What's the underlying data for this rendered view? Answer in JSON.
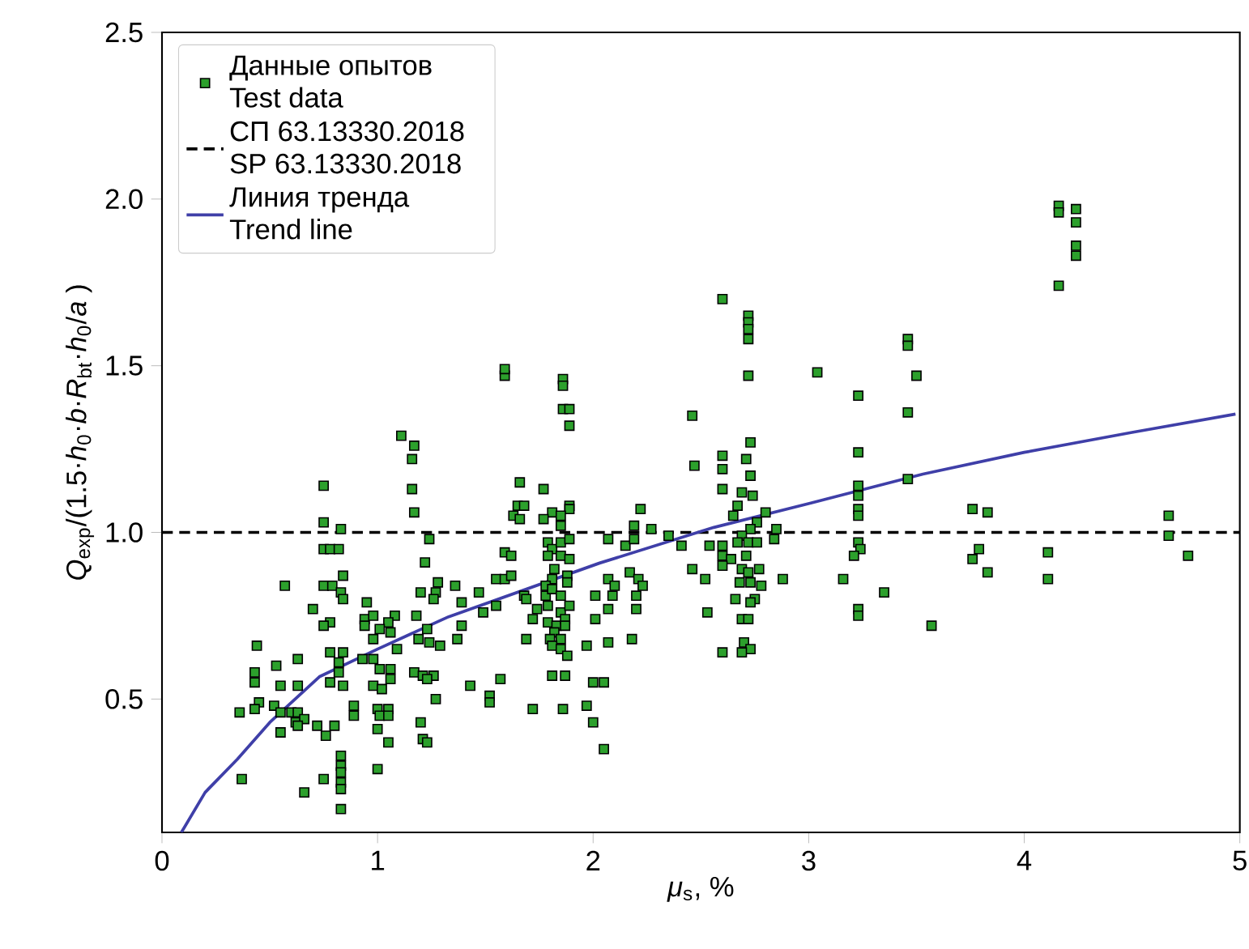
{
  "chart_data": {
    "type": "scatter",
    "xlabel": "*μ*$_{s}$,  %",
    "ylabel": "*Q*$_{exp}$/(1.5·*h*$_{0}$·*b*·*R*$_{bt}$·*h*$_{0}$/*a* )",
    "xlim": [
      0,
      5
    ],
    "ylim": [
      0.1,
      2.5
    ],
    "xticks": [
      0,
      1,
      2,
      3,
      4,
      5
    ],
    "yticks": [
      {
        "value": 0.5,
        "label": "0.5"
      },
      {
        "value": 1.0,
        "label": "1.0"
      },
      {
        "value": 1.5,
        "label": "1.5"
      },
      {
        "value": 2.0,
        "label": "2.0"
      },
      {
        "value": 2.5,
        "label": "2.5"
      }
    ],
    "legend": "top left",
    "series": [
      {
        "name": "Данные опытов Test data",
        "marker": "square",
        "color": "#2ca02c",
        "x": [
          1.11,
          1.17,
          1.16,
          0.75,
          1.16,
          1.17,
          0.75,
          0.83,
          1.24,
          0.75,
          0.78,
          0.82,
          1.22,
          0.57,
          0.75,
          0.79,
          0.84,
          0.83,
          0.84,
          1.28,
          1.2,
          1.27,
          1.26,
          0.95,
          0.7,
          0.78,
          0.75,
          0.94,
          0.98,
          1.08,
          1.18,
          1.05,
          0.94,
          1.01,
          0.98,
          1.06,
          1.09,
          1.23,
          1.19,
          1.29,
          1.24,
          0.44,
          0.78,
          0.84,
          0.82,
          0.93,
          0.98,
          1.01,
          1.06,
          0.63,
          0.53,
          0.82,
          0.63,
          0.55,
          0.43,
          0.43,
          0.78,
          0.84,
          0.98,
          1.02,
          1.06,
          1.17,
          1.21,
          1.26,
          1.23,
          0.45,
          0.43,
          0.36,
          0.52,
          0.55,
          0.6,
          0.63,
          0.62,
          0.66,
          0.89,
          0.89,
          1.0,
          1.05,
          1.01,
          1.05,
          1.27,
          0.55,
          0.63,
          0.72,
          0.76,
          0.8,
          1.0,
          1.05,
          1.2,
          1.21,
          1.23,
          0.83,
          0.83,
          0.83,
          0.83,
          0.83,
          0.75,
          0.37,
          1.0,
          0.66,
          0.83,
          1.59,
          1.59,
          1.86,
          1.86,
          1.86,
          1.89,
          1.89,
          2.46,
          2.47,
          1.66,
          1.77,
          1.65,
          1.68,
          1.63,
          1.66,
          1.81,
          1.89,
          1.89,
          1.77,
          1.85,
          1.85,
          2.22,
          2.19,
          2.27,
          2.07,
          2.15,
          2.19,
          2.35,
          2.41,
          2.46,
          2.52,
          2.54,
          1.59,
          1.62,
          1.79,
          1.81,
          1.85,
          1.89,
          1.79,
          1.85,
          1.89,
          1.82,
          1.88,
          1.81,
          1.55,
          1.59,
          1.62,
          1.68,
          1.69,
          1.36,
          1.47,
          1.39,
          1.55,
          1.49,
          1.78,
          1.78,
          1.81,
          1.85,
          1.88,
          1.74,
          1.72,
          1.79,
          1.85,
          1.89,
          1.79,
          1.83,
          1.87,
          1.82,
          1.87,
          1.8,
          1.85,
          1.81,
          1.85,
          1.88,
          2.01,
          2.07,
          2.1,
          2.09,
          2.07,
          2.01,
          2.17,
          2.21,
          2.23,
          2.2,
          2.2,
          1.39,
          1.37,
          1.69,
          1.97,
          2.07,
          2.18,
          1.81,
          1.87,
          1.57,
          1.43,
          1.52,
          1.52,
          2.0,
          2.05,
          1.72,
          1.86,
          1.97,
          2.0,
          2.05,
          2.53,
          2.6,
          2.72,
          2.72,
          2.72,
          2.72,
          2.72,
          3.04,
          3.46,
          3.46,
          3.5,
          3.23,
          3.46,
          2.73,
          2.6,
          2.6,
          2.71,
          2.73,
          3.23,
          2.6,
          2.69,
          2.74,
          3.23,
          3.23,
          3.23,
          3.23,
          3.46,
          2.67,
          2.65,
          2.8,
          2.76,
          2.73,
          2.69,
          2.85,
          2.84,
          3.23,
          3.24,
          3.21,
          2.6,
          2.67,
          2.72,
          2.76,
          2.6,
          2.64,
          2.71,
          2.6,
          2.69,
          2.72,
          2.77,
          2.68,
          2.73,
          2.78,
          2.88,
          3.16,
          3.35,
          2.66,
          2.75,
          2.73,
          3.23,
          3.23,
          2.69,
          2.72,
          2.7,
          2.73,
          2.69,
          2.6,
          3.57,
          4.16,
          4.16,
          4.24,
          4.24,
          4.24,
          4.24,
          4.16,
          3.76,
          3.83,
          3.76,
          3.79,
          3.83,
          4.11,
          4.11,
          4.67,
          4.67,
          4.76
        ],
        "values": [
          1.29,
          1.26,
          1.22,
          1.14,
          1.13,
          1.06,
          1.03,
          1.01,
          0.98,
          0.95,
          0.95,
          0.95,
          0.91,
          0.84,
          0.84,
          0.84,
          0.87,
          0.82,
          0.8,
          0.85,
          0.82,
          0.82,
          0.8,
          0.79,
          0.77,
          0.73,
          0.72,
          0.74,
          0.75,
          0.75,
          0.75,
          0.73,
          0.72,
          0.71,
          0.68,
          0.7,
          0.65,
          0.71,
          0.68,
          0.66,
          0.67,
          0.66,
          0.64,
          0.64,
          0.61,
          0.62,
          0.62,
          0.59,
          0.59,
          0.62,
          0.6,
          0.58,
          0.54,
          0.54,
          0.58,
          0.55,
          0.55,
          0.54,
          0.54,
          0.53,
          0.56,
          0.58,
          0.57,
          0.57,
          0.56,
          0.49,
          0.47,
          0.46,
          0.48,
          0.46,
          0.46,
          0.46,
          0.43,
          0.44,
          0.48,
          0.45,
          0.47,
          0.47,
          0.45,
          0.45,
          0.5,
          0.4,
          0.42,
          0.42,
          0.39,
          0.42,
          0.41,
          0.37,
          0.43,
          0.38,
          0.37,
          0.33,
          0.3,
          0.28,
          0.25,
          0.23,
          0.26,
          0.26,
          0.29,
          0.22,
          0.17,
          1.47,
          1.49,
          1.46,
          1.44,
          1.37,
          1.37,
          1.32,
          1.35,
          1.2,
          1.15,
          1.13,
          1.08,
          1.08,
          1.05,
          1.04,
          1.06,
          1.08,
          1.07,
          1.04,
          1.05,
          1.02,
          1.07,
          1.02,
          1.01,
          0.98,
          0.96,
          0.98,
          0.99,
          0.96,
          0.89,
          0.86,
          0.96,
          0.94,
          0.93,
          0.97,
          0.95,
          0.97,
          0.98,
          0.93,
          0.93,
          0.92,
          0.89,
          0.87,
          0.86,
          0.86,
          0.86,
          0.87,
          0.81,
          0.8,
          0.84,
          0.82,
          0.79,
          0.78,
          0.76,
          0.84,
          0.81,
          0.83,
          0.81,
          0.85,
          0.77,
          0.74,
          0.78,
          0.76,
          0.78,
          0.73,
          0.72,
          0.74,
          0.7,
          0.72,
          0.68,
          0.68,
          0.66,
          0.65,
          0.63,
          0.81,
          0.86,
          0.84,
          0.81,
          0.77,
          0.74,
          0.88,
          0.86,
          0.84,
          0.81,
          0.77,
          0.72,
          0.68,
          0.68,
          0.66,
          0.67,
          0.68,
          0.57,
          0.57,
          0.56,
          0.54,
          0.51,
          0.49,
          0.55,
          0.55,
          0.47,
          0.47,
          0.48,
          0.43,
          0.35,
          0.76,
          1.7,
          1.65,
          1.63,
          1.61,
          1.58,
          1.47,
          1.48,
          1.58,
          1.56,
          1.47,
          1.41,
          1.36,
          1.27,
          1.23,
          1.19,
          1.22,
          1.17,
          1.24,
          1.13,
          1.12,
          1.11,
          1.14,
          1.11,
          1.07,
          1.05,
          1.16,
          1.08,
          1.05,
          1.06,
          1.03,
          1.01,
          0.99,
          1.01,
          0.98,
          0.97,
          0.95,
          0.93,
          0.96,
          0.97,
          0.97,
          0.97,
          0.93,
          0.92,
          0.93,
          0.9,
          0.89,
          0.88,
          0.89,
          0.85,
          0.85,
          0.84,
          0.86,
          0.86,
          0.82,
          0.8,
          0.8,
          0.79,
          0.77,
          0.75,
          0.74,
          0.74,
          0.67,
          0.65,
          0.64,
          0.64,
          0.72,
          1.98,
          1.96,
          1.97,
          1.93,
          1.86,
          1.83,
          1.74,
          1.07,
          1.06,
          0.92,
          0.95,
          0.88,
          0.94,
          0.86,
          1.05,
          0.99,
          0.93
        ]
      },
      {
        "name": "Линия тренда Trend line",
        "type": "line",
        "marker": "none",
        "color": "#3f3fa8",
        "line_style": "solid",
        "x": [
          0.09,
          0.2,
          0.35,
          0.5,
          0.73,
          1.0,
          1.33,
          2.03,
          2.56,
          3.01,
          3.53,
          4.0,
          4.5,
          4.98
        ],
        "values": [
          0.1,
          0.22,
          0.32,
          0.43,
          0.567,
          0.65,
          0.747,
          0.908,
          1.015,
          1.088,
          1.175,
          1.24,
          1.3,
          1.355
        ]
      }
    ],
    "ref_lines": [
      {
        "axis": "y",
        "value": 1.0,
        "label": "СП 63.13330.2018 SP 63.13330.2018",
        "color": "#000000",
        "line_style": "dashed"
      }
    ]
  }
}
